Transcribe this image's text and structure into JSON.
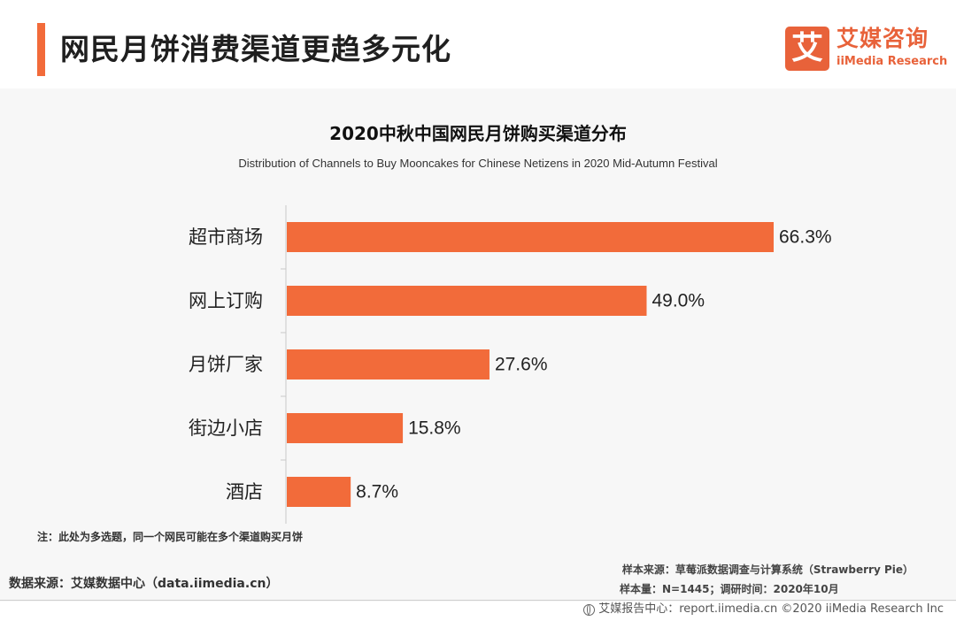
{
  "header": {
    "title": "网民月饼消费渠道更趋多元化",
    "logo_mark": "艾",
    "logo_cn": "艾媒咨询",
    "logo_en": "iiMedia Research"
  },
  "chart_data": {
    "type": "bar",
    "orientation": "horizontal",
    "title": "2020中秋中国网民月饼购买渠道分布",
    "subtitle": "Distribution of Channels to Buy Mooncakes for Chinese Netizens in 2020 Mid-Autumn Festival",
    "categories": [
      "超市商场",
      "网上订购",
      "月饼厂家",
      "街边小店",
      "酒店"
    ],
    "values": [
      66.3,
      49.0,
      27.6,
      15.8,
      8.7
    ],
    "value_labels": [
      "66.3%",
      "49.0%",
      "27.6%",
      "15.8%",
      "8.7%"
    ],
    "xlim": [
      0,
      66.3
    ],
    "grid": false,
    "bar_color": "#f26b3a"
  },
  "notes": {
    "note": "注：此处为多选题，同一个网民可能在多个渠道购买月饼",
    "data_source": "数据来源：艾媒数据中心（data.iimedia.cn）",
    "sample_source": "样本来源：草莓派数据调查与计算系统（Strawberry Pie）",
    "sample_size": "样本量：N=1445；调研时间：2020年10月"
  },
  "footer": {
    "text": "艾媒报告中心：report.iimedia.cn ©2020 iiMedia Research Inc",
    "icon": "globe-icon"
  }
}
